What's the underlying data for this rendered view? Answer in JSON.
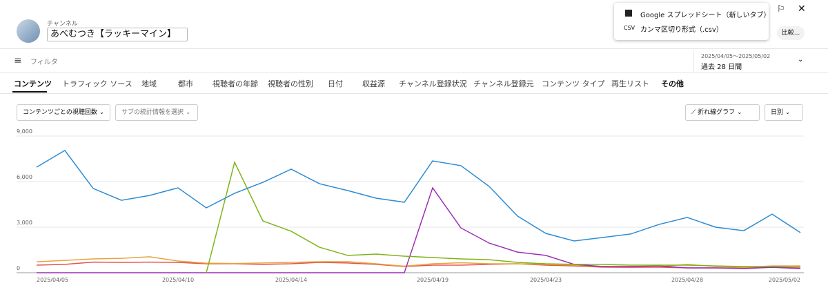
{
  "header": {
    "channel_label": "チャンネル",
    "channel_name": "あべむつき【ラッキーマイン】",
    "filter": "フィルタ",
    "date_range": "2025/04/05～2025/05/02",
    "period": "過去 28 日間",
    "compare": "比較..."
  },
  "export_menu": {
    "items": [
      {
        "icon": "CSV",
        "label": "カンマ区切り形式（.csv）"
      },
      {
        "label": "Google スプレッドシート（新しいタブ）"
      }
    ]
  },
  "tabs": [
    "コンテンツ",
    "トラフィック ソース",
    "地域",
    "都市",
    "視聴者の年齢",
    "視聴者の性別",
    "日付",
    "収益源",
    "チャンネル登録状況",
    "チャンネル登録元",
    "コンテンツ タイプ",
    "再生リスト",
    "その他"
  ],
  "controls": {
    "metric": "コンテンツごとの視聴回数",
    "secondary": "サブの統計情報を選択",
    "chart_kind": "折れ線グラフ",
    "interval": "日別"
  },
  "chart_data": {
    "type": "line",
    "categories": [
      "2025/04/05",
      null,
      null,
      null,
      null,
      "2025/04/10",
      null,
      null,
      null,
      "2025/04/14",
      null,
      null,
      null,
      null,
      "2025/04/19",
      null,
      null,
      null,
      "2025/04/23",
      null,
      null,
      null,
      null,
      "2025/04/28",
      null,
      null,
      null,
      "2025/05/02"
    ],
    "series": [
      {
        "color": "#2d8bd3",
        "values": [
          6950,
          8050,
          5550,
          4770,
          5090,
          5590,
          4270,
          5230,
          5950,
          6820,
          5860,
          5410,
          4910,
          4640,
          7360,
          7050,
          5680,
          3730,
          2590,
          2090,
          2320,
          2550,
          3180,
          3640,
          3000,
          2770,
          3860,
          2640
        ]
      },
      {
        "color": "#7cb518",
        "values": [
          null,
          null,
          null,
          null,
          null,
          null,
          0,
          7270,
          3410,
          2730,
          1680,
          1140,
          1230,
          1090,
          1000,
          910,
          860,
          680,
          590,
          550,
          550,
          500,
          500,
          500,
          450,
          410,
          410,
          410
        ]
      },
      {
        "color": "#9c2fb5",
        "values": [
          0,
          0,
          0,
          0,
          0,
          0,
          0,
          0,
          0,
          0,
          0,
          0,
          0,
          0,
          5590,
          2950,
          1950,
          1360,
          1140,
          550,
          410,
          410,
          450,
          320,
          320,
          270,
          360,
          270
        ]
      },
      {
        "color": "#e8a33d",
        "values": [
          720,
          810,
          910,
          950,
          1050,
          770,
          630,
          610,
          640,
          680,
          730,
          730,
          590,
          430,
          590,
          660,
          590,
          590,
          550,
          500,
          410,
          410,
          400,
          550,
          410,
          360,
          450,
          450
        ]
      },
      {
        "color": "#e5534b",
        "values": [
          500,
          550,
          700,
          680,
          700,
          680,
          590,
          590,
          550,
          590,
          680,
          640,
          550,
          410,
          500,
          500,
          550,
          590,
          500,
          450,
          370,
          360,
          370,
          320,
          320,
          320,
          360,
          320
        ]
      }
    ],
    "ylim": [
      0,
      9000
    ],
    "yticks": [
      0,
      {
        "value": 3000,
        "label": "3,000"
      },
      {
        "value": 6000,
        "label": "6,000"
      },
      {
        "value": 9000,
        "label": "9,000"
      }
    ],
    "grid": true
  }
}
